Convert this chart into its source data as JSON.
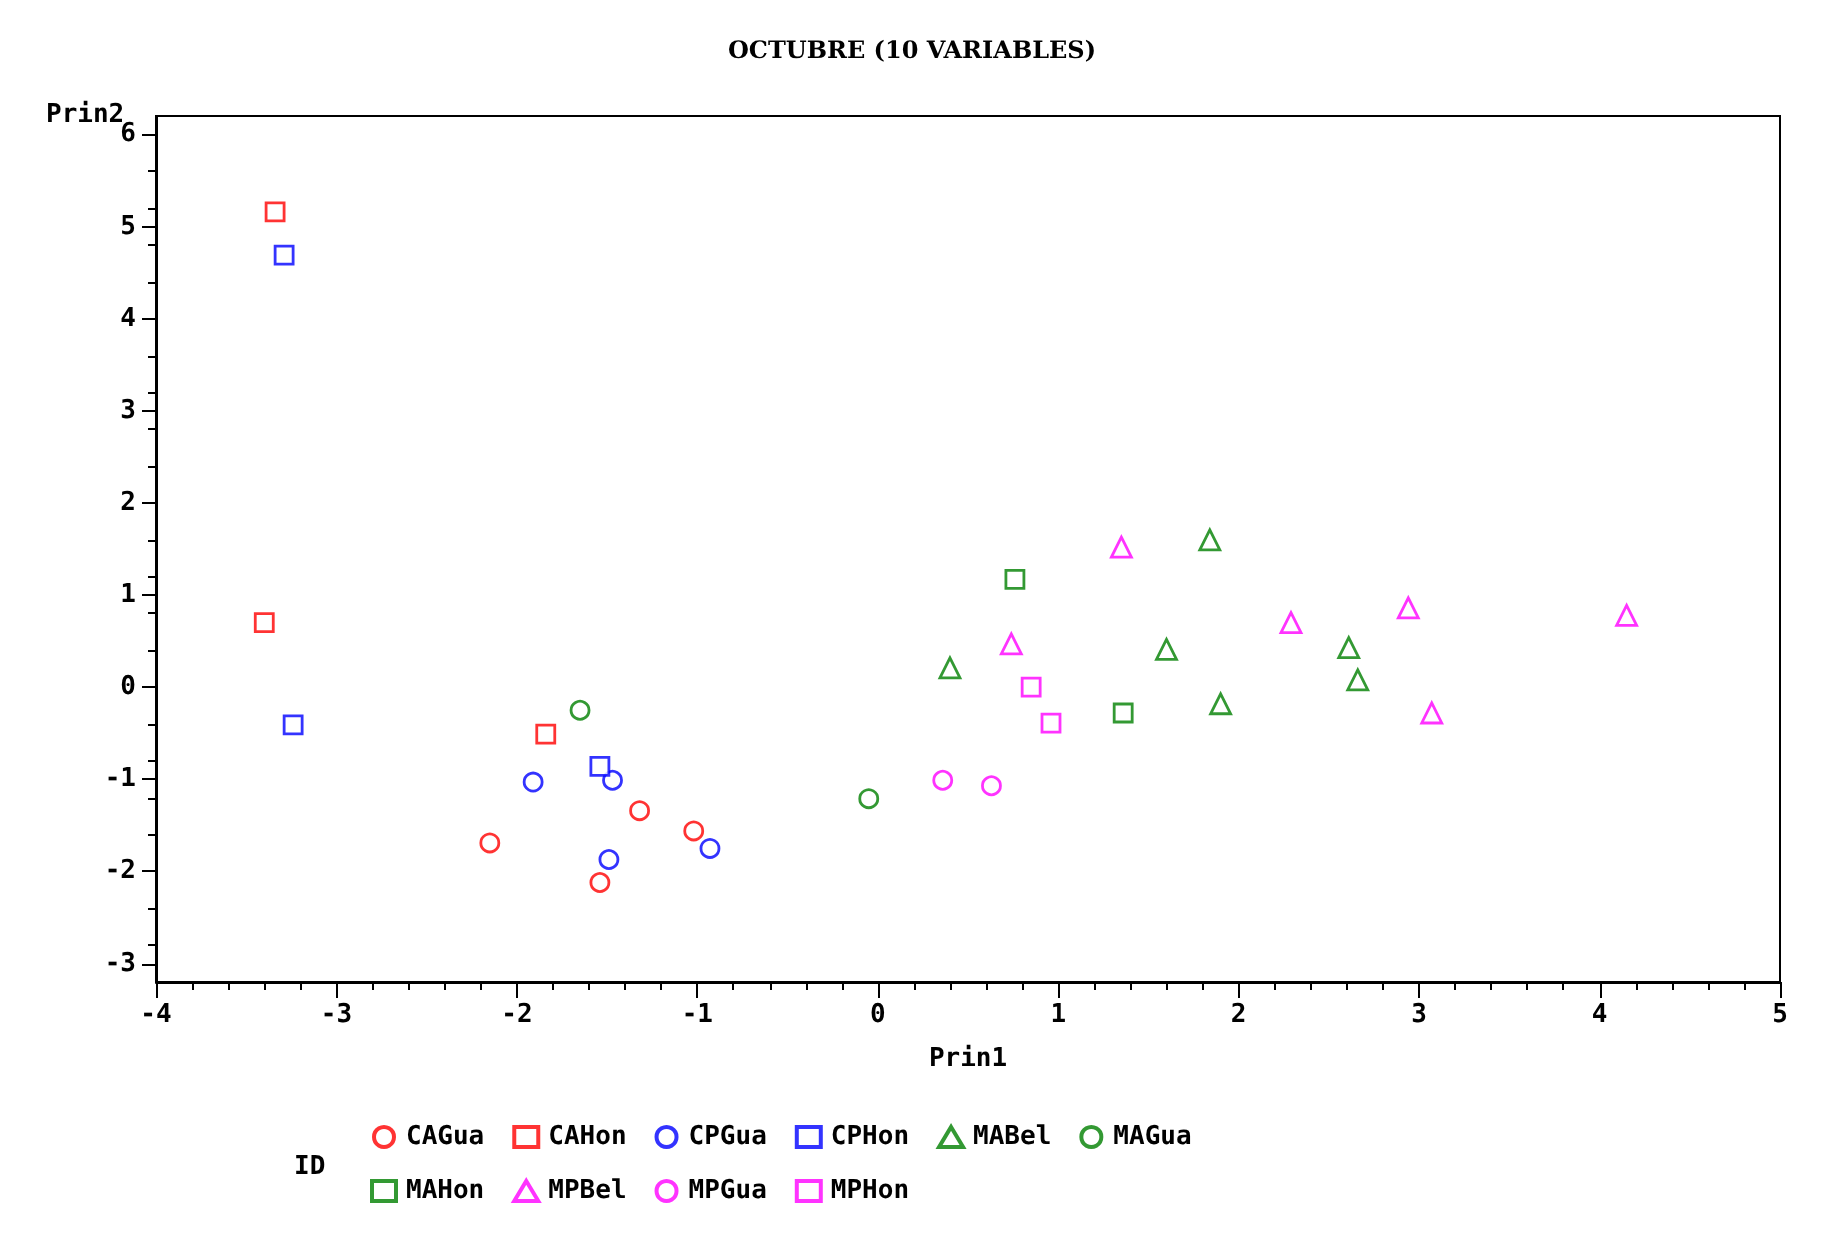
{
  "chart_data": {
    "type": "scatter",
    "title": "OCTUBRE (10 VARIABLES)",
    "xlabel": "Prin1",
    "ylabel": "Prin2",
    "legend_title": "ID",
    "legend": "bottom",
    "xlim": [
      -4,
      5
    ],
    "xticks": [
      -4,
      -3,
      -2,
      -1,
      0,
      1,
      2,
      3,
      4,
      5
    ],
    "ylim": [
      -3.2,
      6.2
    ],
    "yticks": [
      -3,
      -2,
      -1,
      0,
      1,
      2,
      3,
      4,
      5,
      6
    ],
    "series": [
      {
        "name": "CAGua",
        "color": "#ff0000",
        "marker": "circle",
        "x": [
          -2.15,
          -1.54,
          -1.32,
          -1.02
        ],
        "values": [
          -1.69,
          -2.12,
          -1.34,
          -1.56
        ]
      },
      {
        "name": "CAHon",
        "color": "#ff0000",
        "marker": "square",
        "x": [
          -3.34,
          -3.4,
          -1.84
        ],
        "values": [
          5.16,
          0.7,
          -0.51
        ]
      },
      {
        "name": "CPGua",
        "color": "#0000ff",
        "marker": "circle",
        "x": [
          -1.91,
          -1.47,
          -1.49,
          -0.93
        ],
        "values": [
          -1.03,
          -1.01,
          -1.87,
          -1.75
        ]
      },
      {
        "name": "CPHon",
        "color": "#0000ff",
        "marker": "square",
        "x": [
          -3.29,
          -3.24,
          -1.54
        ],
        "values": [
          4.69,
          -0.41,
          -0.86
        ]
      },
      {
        "name": "MABel",
        "color": "#008000",
        "marker": "triangle",
        "x": [
          0.4,
          1.84,
          1.6,
          1.9,
          2.61,
          2.66
        ],
        "values": [
          0.21,
          1.6,
          0.41,
          -0.18,
          0.43,
          0.08
        ]
      },
      {
        "name": "MAGua",
        "color": "#008000",
        "marker": "circle",
        "x": [
          -1.65,
          -0.05
        ],
        "values": [
          -0.25,
          -1.21
        ]
      },
      {
        "name": "MAHon",
        "color": "#008000",
        "marker": "square",
        "x": [
          0.76,
          1.36
        ],
        "values": [
          1.17,
          -0.28
        ]
      },
      {
        "name": "MPBel",
        "color": "#ff00ff",
        "marker": "triangle",
        "x": [
          1.35,
          0.74,
          2.29,
          2.94,
          4.15,
          3.07
        ],
        "values": [
          1.52,
          0.47,
          0.7,
          0.86,
          0.78,
          -0.28
        ]
      },
      {
        "name": "MPGua",
        "color": "#ff00ff",
        "marker": "circle",
        "x": [
          0.36,
          0.63
        ],
        "values": [
          -1.01,
          -1.07
        ]
      },
      {
        "name": "MPHon",
        "color": "#ff00ff",
        "marker": "square",
        "x": [
          0.85,
          0.96
        ],
        "values": [
          0.0,
          -0.39
        ]
      }
    ]
  }
}
